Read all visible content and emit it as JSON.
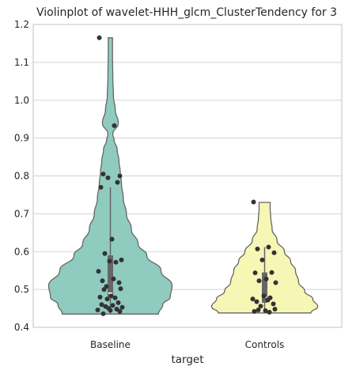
{
  "chart_data": {
    "type": "violin",
    "title": "Violinplot of wavelet-HHH_glcm_ClusterTendency for 3",
    "xlabel": "target",
    "ylabel": "",
    "categories": [
      "Baseline",
      "Controls"
    ],
    "ylim": [
      0.4,
      1.2
    ],
    "yticks": [
      "0.4",
      "0.5",
      "0.6",
      "0.7",
      "0.8",
      "0.9",
      "1.0",
      "1.1",
      "1.2"
    ],
    "grid": "horizontal",
    "colors": [
      "#8fcbbf",
      "#f6f6b5"
    ],
    "violins": [
      {
        "category": "Baseline",
        "min": 0.435,
        "max": 1.165,
        "box": {
          "q1": 0.48,
          "median": 0.49,
          "q3": 0.59,
          "whisker_low": 0.435,
          "whisker_high": 0.77
        },
        "density": [
          [
            0.435,
            0.78
          ],
          [
            0.46,
            0.85
          ],
          [
            0.48,
            0.97
          ],
          [
            0.51,
            1.0
          ],
          [
            0.55,
            0.82
          ],
          [
            0.59,
            0.59
          ],
          [
            0.62,
            0.45
          ],
          [
            0.66,
            0.34
          ],
          [
            0.7,
            0.26
          ],
          [
            0.74,
            0.21
          ],
          [
            0.78,
            0.18
          ],
          [
            0.81,
            0.16
          ],
          [
            0.84,
            0.14
          ],
          [
            0.87,
            0.11
          ],
          [
            0.895,
            0.06
          ],
          [
            0.91,
            0.04
          ],
          [
            0.94,
            0.13
          ],
          [
            0.975,
            0.08
          ],
          [
            1.01,
            0.05
          ],
          [
            1.06,
            0.04
          ],
          [
            1.12,
            0.035
          ],
          [
            1.165,
            0.035
          ]
        ],
        "points": [
          1.165,
          0.933,
          0.805,
          0.8,
          0.795,
          0.783,
          0.77,
          0.633,
          0.595,
          0.578,
          0.575,
          0.572,
          0.548,
          0.528,
          0.523,
          0.518,
          0.508,
          0.502,
          0.5,
          0.483,
          0.48,
          0.478,
          0.475,
          0.465,
          0.46,
          0.458,
          0.455,
          0.453,
          0.45,
          0.448,
          0.446,
          0.445,
          0.442,
          0.436
        ]
      },
      {
        "category": "Controls",
        "min": 0.438,
        "max": 0.73,
        "box": {
          "q1": 0.465,
          "median": 0.48,
          "q3": 0.545,
          "whisker_low": 0.438,
          "whisker_high": 0.612
        },
        "density": [
          [
            0.438,
            0.75
          ],
          [
            0.455,
            0.86
          ],
          [
            0.475,
            0.78
          ],
          [
            0.495,
            0.65
          ],
          [
            0.52,
            0.55
          ],
          [
            0.55,
            0.5
          ],
          [
            0.575,
            0.42
          ],
          [
            0.6,
            0.32
          ],
          [
            0.63,
            0.2
          ],
          [
            0.66,
            0.12
          ],
          [
            0.69,
            0.1
          ],
          [
            0.71,
            0.09
          ],
          [
            0.73,
            0.09
          ]
        ],
        "points": [
          0.731,
          0.612,
          0.607,
          0.597,
          0.578,
          0.545,
          0.544,
          0.528,
          0.523,
          0.518,
          0.483,
          0.478,
          0.475,
          0.472,
          0.468,
          0.462,
          0.456,
          0.448,
          0.446,
          0.444,
          0.442,
          0.44
        ]
      }
    ]
  }
}
